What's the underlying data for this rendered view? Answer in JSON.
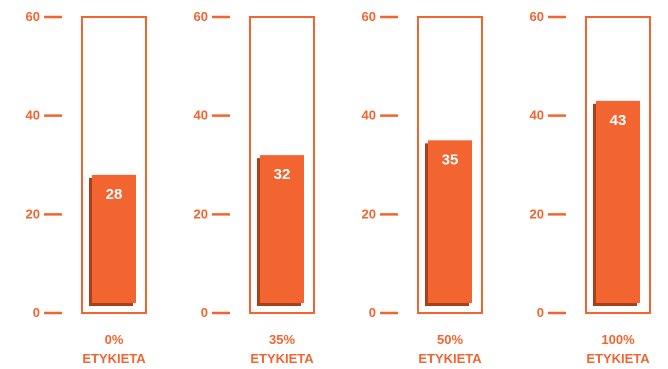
{
  "chart_data": {
    "type": "bar",
    "categories": [
      {
        "percent": "0%",
        "label": "ETYKIETA"
      },
      {
        "percent": "35%",
        "label": "ETYKIETA"
      },
      {
        "percent": "50%",
        "label": "ETYKIETA"
      },
      {
        "percent": "100%",
        "label": "ETYKIETA"
      }
    ],
    "values": [
      28,
      32,
      35,
      43
    ],
    "title": "",
    "xlabel": "",
    "ylabel": "",
    "ylim": [
      0,
      60
    ],
    "yticks": [
      0,
      20,
      40,
      60
    ],
    "grid": false,
    "colors": {
      "bar": "#f26430",
      "bar_shadow": "#a8401b",
      "outline": "#f26430",
      "text": "#f26430",
      "value_text": "#ffffff"
    }
  }
}
